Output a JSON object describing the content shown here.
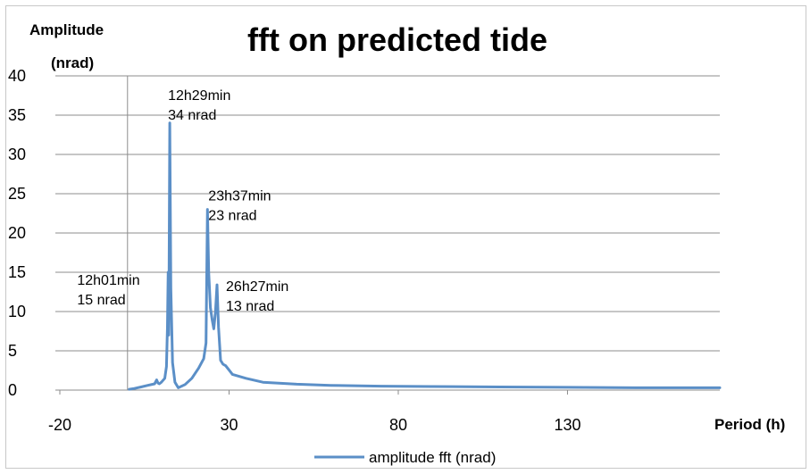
{
  "chart_data": {
    "type": "line",
    "title": "fft  on predicted tide",
    "xlabel": "Period (h)",
    "ylabel_line1": "Amplitude",
    "ylabel_line2": "(nrad)",
    "xlim": [
      -20,
      175
    ],
    "ylim": [
      0,
      40
    ],
    "xticks": [
      "-20",
      "30",
      "80",
      "130"
    ],
    "xtick_values": [
      -20,
      30,
      80,
      130
    ],
    "yticks": [
      "0",
      "5",
      "10",
      "15",
      "20",
      "25",
      "30",
      "35",
      "40"
    ],
    "ytick_values": [
      0,
      5,
      10,
      15,
      20,
      25,
      30,
      35,
      40
    ],
    "grid": "horizontal",
    "legend_position": "bottom",
    "series": [
      {
        "name": "amplitude fft (nrad)",
        "color": "#5b8fc7",
        "x": [
          0.5,
          2,
          4,
          6,
          8,
          8.6,
          9,
          9.4,
          10,
          11,
          11.5,
          11.8,
          12.02,
          12.2,
          12.48,
          12.8,
          13.3,
          14,
          15,
          17,
          19,
          21,
          22.5,
          23.2,
          23.62,
          24,
          24.5,
          25,
          25.5,
          26,
          26.45,
          26.9,
          27.5,
          28.2,
          29,
          31,
          35,
          40,
          50,
          60,
          75,
          90,
          110,
          130,
          150,
          175
        ],
        "y": [
          0.1,
          0.2,
          0.4,
          0.6,
          0.8,
          1.3,
          0.9,
          0.8,
          1.0,
          1.5,
          3.0,
          8.0,
          15.0,
          7.0,
          34.0,
          13.0,
          3.5,
          1.0,
          0.3,
          0.7,
          1.5,
          2.8,
          4.0,
          6.0,
          23.0,
          15.0,
          10.5,
          9.0,
          7.8,
          10.0,
          13.4,
          8.0,
          3.8,
          3.3,
          3.1,
          2.0,
          1.5,
          1.0,
          0.75,
          0.6,
          0.5,
          0.45,
          0.4,
          0.35,
          0.3,
          0.3
        ]
      }
    ],
    "annotations": [
      {
        "line1": "12h29min",
        "line2": "34 nrad",
        "x": 12.48,
        "y": 34
      },
      {
        "line1": "23h37min",
        "line2": "23 nrad",
        "x": 23.62,
        "y": 23
      },
      {
        "line1": "26h27min",
        "line2": "13 nrad",
        "x": 26.45,
        "y": 13.4
      },
      {
        "line1": "12h01min",
        "line2": "15 nrad",
        "x": 12.02,
        "y": 15
      }
    ]
  }
}
